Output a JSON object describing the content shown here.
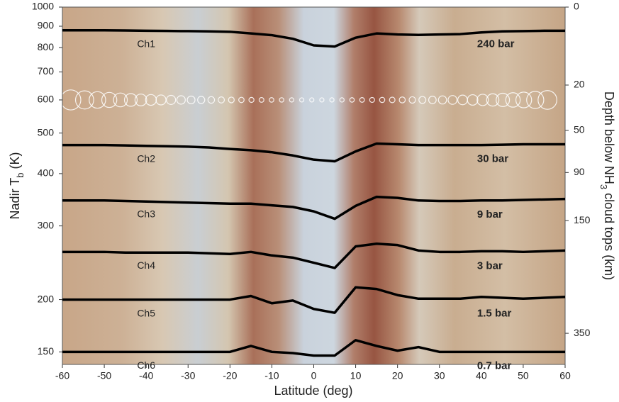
{
  "chart_data": {
    "type": "line",
    "xlabel": "Latitude (deg)",
    "ylabel": [
      "Nadir T",
      "b",
      " (K)"
    ],
    "y2label": [
      "Depth below NH",
      "3",
      " cloud tops (km)"
    ],
    "x": [
      -60,
      -55,
      -50,
      -45,
      -40,
      -35,
      -30,
      -25,
      -20,
      -15,
      -10,
      -5,
      0,
      5,
      10,
      15,
      20,
      25,
      30,
      35,
      40,
      45,
      50,
      55,
      60
    ],
    "xlim": [
      -60,
      60
    ],
    "xticks": [
      -60,
      -50,
      -40,
      -30,
      -20,
      -10,
      0,
      10,
      20,
      30,
      40,
      50,
      60
    ],
    "yscale": "log",
    "ylim": [
      140,
      1000
    ],
    "yticks": [
      150,
      200,
      300,
      400,
      500,
      600,
      700,
      800,
      900,
      1000
    ],
    "y2scale": "sqrt",
    "y2lim": [
      0,
      420
    ],
    "y2ticks": [
      0,
      20,
      50,
      90,
      150,
      350
    ],
    "series": [
      {
        "name": "Ch6",
        "label": "0.7 bar",
        "color": "#000000",
        "values": [
          150,
          150,
          150,
          150,
          150,
          150,
          150,
          150,
          150,
          155,
          150,
          149,
          147,
          147,
          160,
          155,
          151,
          154,
          150,
          150,
          150,
          150,
          150,
          150,
          150
        ]
      },
      {
        "name": "Ch5",
        "label": "1.5 bar",
        "color": "#000000",
        "values": [
          200,
          200,
          200,
          200,
          200,
          200,
          200,
          200,
          200,
          204,
          196,
          199,
          190,
          186,
          214,
          212,
          205,
          201,
          201,
          201,
          203,
          202,
          201,
          202,
          203
        ]
      },
      {
        "name": "Ch4",
        "label": "3 bar",
        "color": "#000000",
        "values": [
          260,
          260,
          260,
          259,
          259,
          259,
          259,
          258,
          257,
          260,
          255,
          252,
          245,
          238,
          268,
          272,
          270,
          262,
          260,
          260,
          261,
          261,
          260,
          261,
          262
        ]
      },
      {
        "name": "Ch3",
        "label": "9 bar",
        "color": "#000000",
        "values": [
          345,
          345,
          345,
          344,
          343,
          342,
          341,
          340,
          339,
          339,
          336,
          333,
          325,
          312,
          335,
          352,
          350,
          345,
          344,
          344,
          345,
          345,
          346,
          347,
          348
        ]
      },
      {
        "name": "Ch2",
        "label": "30 bar",
        "color": "#000000",
        "values": [
          468,
          468,
          468,
          467,
          466,
          465,
          464,
          462,
          458,
          455,
          450,
          442,
          432,
          428,
          452,
          472,
          470,
          468,
          468,
          468,
          468,
          469,
          470,
          470,
          470
        ]
      },
      {
        "name": "Ch1",
        "label": "240 bar",
        "color": "#000000",
        "values": [
          880,
          880,
          880,
          879,
          878,
          877,
          876,
          875,
          873,
          865,
          857,
          840,
          810,
          805,
          845,
          865,
          860,
          858,
          860,
          862,
          870,
          875,
          876,
          878,
          878
        ]
      }
    ]
  }
}
